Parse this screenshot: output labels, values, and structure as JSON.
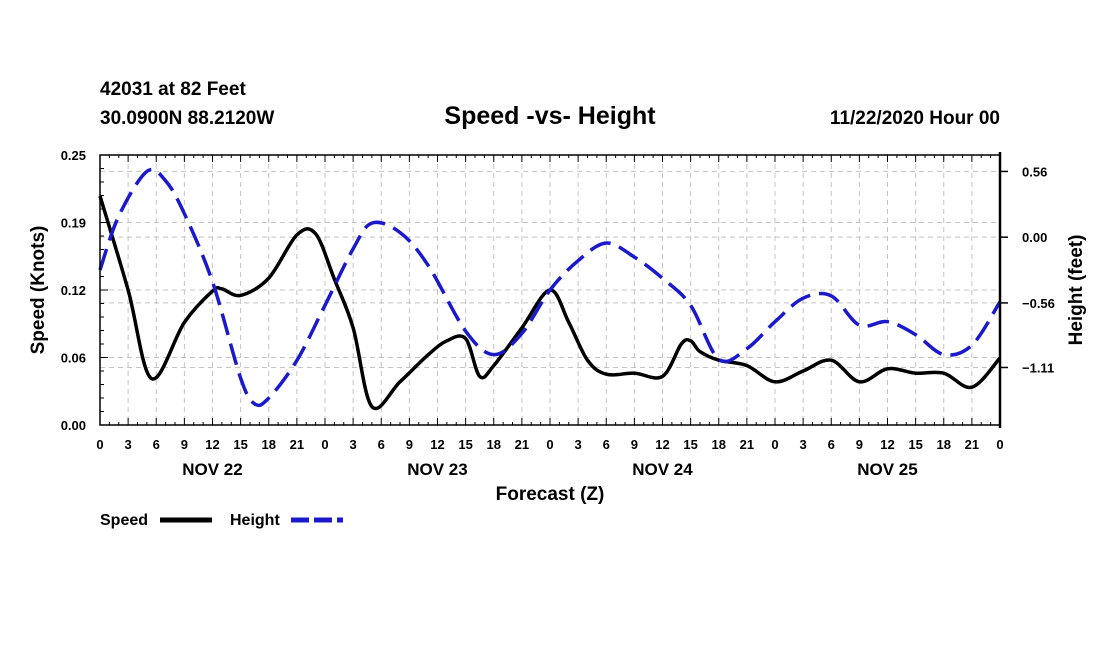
{
  "header": {
    "station": "42031 at 82 Feet",
    "location": "30.0900N 88.2120W",
    "date": "11/22/2020 Hour 00"
  },
  "chart_data": {
    "type": "line",
    "title": "Speed -vs- Height",
    "xlabel": "Forecast (Z)",
    "ylabel_left": "Speed (Knots)",
    "ylabel_right": "Height (feet)",
    "x_range": [
      0,
      96
    ],
    "x_ticks": [
      {
        "hour": 0,
        "label": "0"
      },
      {
        "hour": 3,
        "label": "3"
      },
      {
        "hour": 6,
        "label": "6"
      },
      {
        "hour": 9,
        "label": "9"
      },
      {
        "hour": 12,
        "label": "12"
      },
      {
        "hour": 15,
        "label": "15"
      },
      {
        "hour": 18,
        "label": "18"
      },
      {
        "hour": 21,
        "label": "21"
      },
      {
        "hour": 24,
        "label": "0"
      },
      {
        "hour": 27,
        "label": "3"
      },
      {
        "hour": 30,
        "label": "6"
      },
      {
        "hour": 33,
        "label": "9"
      },
      {
        "hour": 36,
        "label": "12"
      },
      {
        "hour": 39,
        "label": "15"
      },
      {
        "hour": 42,
        "label": "18"
      },
      {
        "hour": 45,
        "label": "21"
      },
      {
        "hour": 48,
        "label": "0"
      },
      {
        "hour": 51,
        "label": "3"
      },
      {
        "hour": 54,
        "label": "6"
      },
      {
        "hour": 57,
        "label": "9"
      },
      {
        "hour": 60,
        "label": "12"
      },
      {
        "hour": 63,
        "label": "15"
      },
      {
        "hour": 66,
        "label": "18"
      },
      {
        "hour": 69,
        "label": "21"
      },
      {
        "hour": 72,
        "label": "0"
      },
      {
        "hour": 75,
        "label": "3"
      },
      {
        "hour": 78,
        "label": "6"
      },
      {
        "hour": 81,
        "label": "9"
      },
      {
        "hour": 84,
        "label": "12"
      },
      {
        "hour": 87,
        "label": "15"
      },
      {
        "hour": 90,
        "label": "18"
      },
      {
        "hour": 93,
        "label": "21"
      },
      {
        "hour": 96,
        "label": "0"
      }
    ],
    "day_labels": [
      {
        "hour": 12,
        "label": "NOV 22"
      },
      {
        "hour": 36,
        "label": "NOV 23"
      },
      {
        "hour": 60,
        "label": "NOV 24"
      },
      {
        "hour": 84,
        "label": "NOV 25"
      }
    ],
    "y_left": {
      "range": [
        0,
        0.25
      ],
      "ticks": [
        {
          "value": 0.0,
          "label": "0.00"
        },
        {
          "value": 0.0625,
          "label": "0.06"
        },
        {
          "value": 0.125,
          "label": "0.12"
        },
        {
          "value": 0.1875,
          "label": "0.19"
        },
        {
          "value": 0.25,
          "label": "0.25"
        }
      ]
    },
    "y_right": {
      "range": [
        -1.6,
        0.7
      ],
      "ticks": [
        {
          "value": 0.56,
          "label": "0.56"
        },
        {
          "value": 0.0,
          "label": "0.00"
        },
        {
          "value": -0.56,
          "label": "-0.56"
        },
        {
          "value": -1.11,
          "label": "-1.11"
        }
      ]
    },
    "grid": true,
    "series": [
      {
        "name": "Speed",
        "axis": "left",
        "color": "#000000",
        "style": "solid",
        "x": [
          0,
          3,
          5.5,
          9,
          12,
          13,
          15,
          18,
          21,
          23,
          25,
          27,
          29,
          32,
          35,
          37,
          39,
          40.5,
          42,
          45,
          48,
          50,
          52,
          54,
          57,
          60,
          62,
          63,
          64,
          66,
          69,
          72,
          75,
          78,
          81,
          84,
          87,
          90,
          93,
          96
        ],
        "values": [
          0.212,
          0.125,
          0.043,
          0.095,
          0.124,
          0.126,
          0.12,
          0.136,
          0.176,
          0.177,
          0.135,
          0.09,
          0.017,
          0.04,
          0.065,
          0.078,
          0.08,
          0.045,
          0.055,
          0.09,
          0.125,
          0.095,
          0.06,
          0.047,
          0.048,
          0.045,
          0.075,
          0.078,
          0.068,
          0.06,
          0.055,
          0.04,
          0.05,
          0.06,
          0.04,
          0.052,
          0.048,
          0.048,
          0.035,
          0.062
        ]
      },
      {
        "name": "Height",
        "axis": "right",
        "color": "#1a1acc",
        "style": "dashed",
        "x": [
          0,
          2,
          5,
          7,
          9,
          12,
          15,
          16.5,
          18,
          21,
          24,
          27,
          29,
          32,
          35,
          39,
          42,
          45,
          48,
          51,
          54,
          57,
          60,
          63,
          66,
          69,
          72,
          75,
          78,
          81,
          84,
          87,
          90,
          93,
          96
        ],
        "values": [
          -0.28,
          0.18,
          0.56,
          0.48,
          0.2,
          -0.38,
          -1.2,
          -1.42,
          -1.37,
          -1.05,
          -0.58,
          -0.1,
          0.12,
          0.04,
          -0.24,
          -0.8,
          -1.0,
          -0.82,
          -0.45,
          -0.2,
          -0.05,
          -0.17,
          -0.35,
          -0.58,
          -1.04,
          -0.95,
          -0.72,
          -0.52,
          -0.5,
          -0.75,
          -0.72,
          -0.83,
          -1.0,
          -0.92,
          -0.55
        ]
      }
    ],
    "legend": {
      "position": "bottom-left",
      "entries": [
        "Speed",
        "Height"
      ]
    }
  }
}
